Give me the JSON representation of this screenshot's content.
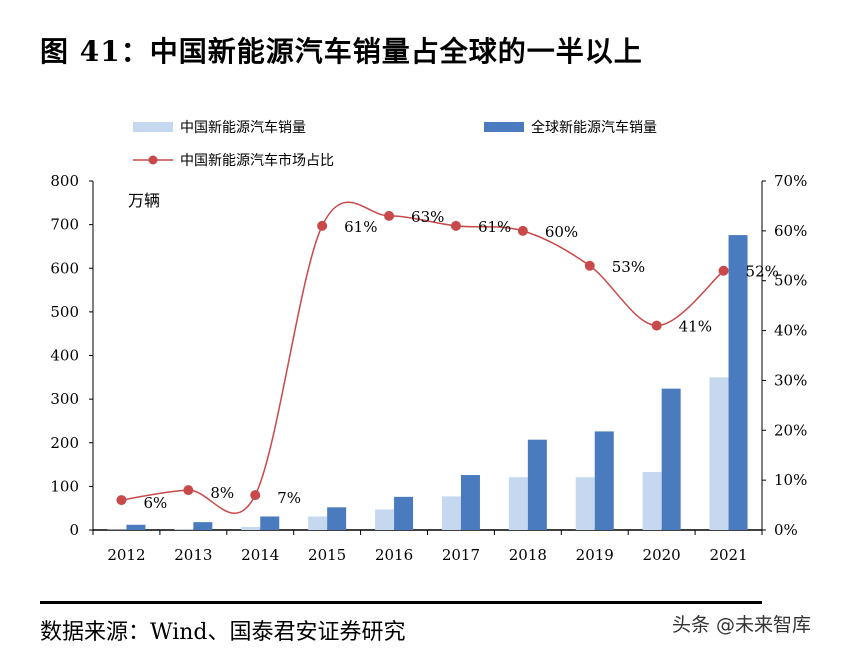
{
  "title": "图 41：中国新能源汽车销量占全球的一半以上",
  "source": "数据来源：Wind、国泰君安证券研究",
  "watermark": "头条 @未来智库",
  "chart_data": {
    "type": "bar+line",
    "categories": [
      "2012",
      "2013",
      "2014",
      "2015",
      "2016",
      "2017",
      "2018",
      "2019",
      "2020",
      "2021"
    ],
    "unit_label": "万辆",
    "series": [
      {
        "name": "中国新能源汽车销量",
        "type": "bar",
        "axis": "left",
        "color": "#c5d8f0",
        "values": [
          1,
          2,
          7,
          31,
          47,
          77,
          121,
          121,
          133,
          350
        ]
      },
      {
        "name": "全球新能源汽车销量",
        "type": "bar",
        "axis": "left",
        "color": "#4a7bbf",
        "values": [
          12,
          18,
          31,
          52,
          76,
          126,
          207,
          226,
          324,
          676
        ]
      },
      {
        "name": "中国新能源汽车市场占比",
        "type": "line",
        "axis": "right",
        "color": "#c9494a",
        "values": [
          6,
          8,
          7,
          61,
          63,
          61,
          60,
          53,
          41,
          52
        ],
        "labels": [
          "6%",
          "8%",
          "7%",
          "61%",
          "63%",
          "61%",
          "60%",
          "53%",
          "41%",
          "52%"
        ]
      }
    ],
    "ylim_left": [
      0,
      800
    ],
    "yticks_left": [
      "0",
      "100",
      "200",
      "300",
      "400",
      "500",
      "600",
      "700",
      "800"
    ],
    "ylim_right": [
      0,
      70
    ],
    "yticks_right": [
      "0%",
      "10%",
      "20%",
      "30%",
      "40%",
      "50%",
      "60%",
      "70%"
    ],
    "legend": "top",
    "grid": false
  }
}
